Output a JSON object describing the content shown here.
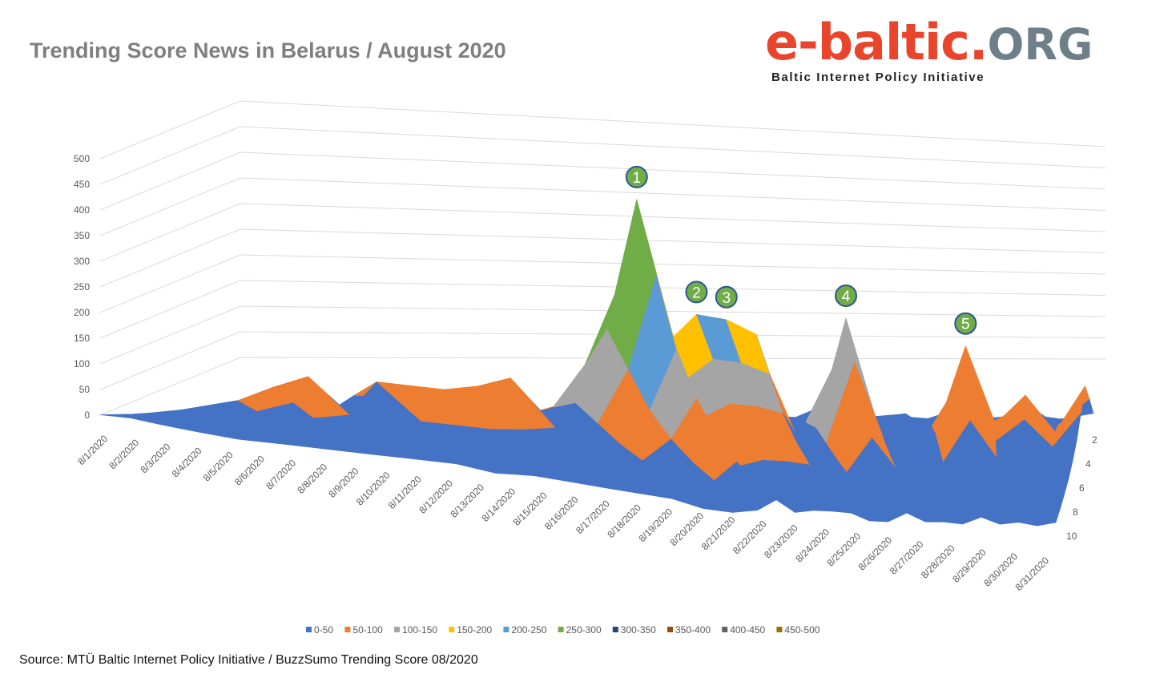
{
  "title": "Trending Score News in Belarus / August 2020",
  "logo": {
    "brand": "e-baltic",
    "dot": ".",
    "tld": "ORG",
    "tagline": "Baltic Internet Policy Initiative"
  },
  "source": "Source: MTÜ Baltic Internet Policy Initiative / BuzzSumo Trending Score 08/2020",
  "chart_data": {
    "type": "surface",
    "categories": [
      "8/1/2020",
      "8/2/2020",
      "8/3/2020",
      "8/4/2020",
      "8/5/2020",
      "8/6/2020",
      "8/7/2020",
      "8/8/2020",
      "8/9/2020",
      "8/10/2020",
      "8/11/2020",
      "8/12/2020",
      "8/13/2020",
      "8/14/2020",
      "8/15/2020",
      "8/16/2020",
      "8/17/2020",
      "8/18/2020",
      "8/19/2020",
      "8/20/2020",
      "8/21/2020",
      "8/22/2020",
      "8/23/2020",
      "8/24/2020",
      "8/25/2020",
      "8/26/2020",
      "8/27/2020",
      "8/28/2020",
      "8/29/2020",
      "8/30/2020",
      "8/31/2020"
    ],
    "depth_ticks": [
      "2",
      "4",
      "6",
      "8",
      "10"
    ],
    "ylim": [
      0,
      500
    ],
    "yticks": [
      0,
      50,
      100,
      150,
      200,
      250,
      300,
      350,
      400,
      450,
      500
    ],
    "top_scores": [
      5,
      20,
      35,
      50,
      80,
      105,
      20,
      100,
      95,
      90,
      100,
      120,
      25,
      75,
      230,
      495,
      200,
      260,
      250,
      220,
      40,
      30,
      255,
      50,
      60,
      20,
      200,
      40,
      100,
      25,
      120
    ],
    "peaks": [
      {
        "label": "1",
        "date": "8/16/2020",
        "value": 495
      },
      {
        "label": "2",
        "date": "8/18/2020",
        "value": 260
      },
      {
        "label": "3",
        "date": "8/19/2020",
        "value": 250
      },
      {
        "label": "4",
        "date": "8/23/2020",
        "value": 255
      },
      {
        "label": "5",
        "date": "8/27/2020",
        "value": 200
      }
    ],
    "legend": [
      {
        "label": "0-50",
        "color": "#4472c4"
      },
      {
        "label": "50-100",
        "color": "#ed7d31"
      },
      {
        "label": "100-150",
        "color": "#a5a5a5"
      },
      {
        "label": "150-200",
        "color": "#ffc000"
      },
      {
        "label": "200-250",
        "color": "#5b9bd5"
      },
      {
        "label": "250-300",
        "color": "#70ad47"
      },
      {
        "label": "300-350",
        "color": "#264478"
      },
      {
        "label": "350-400",
        "color": "#9e480e"
      },
      {
        "label": "400-450",
        "color": "#636363"
      },
      {
        "label": "450-500",
        "color": "#997300"
      }
    ],
    "grid": true,
    "legend_position": "bottom"
  }
}
